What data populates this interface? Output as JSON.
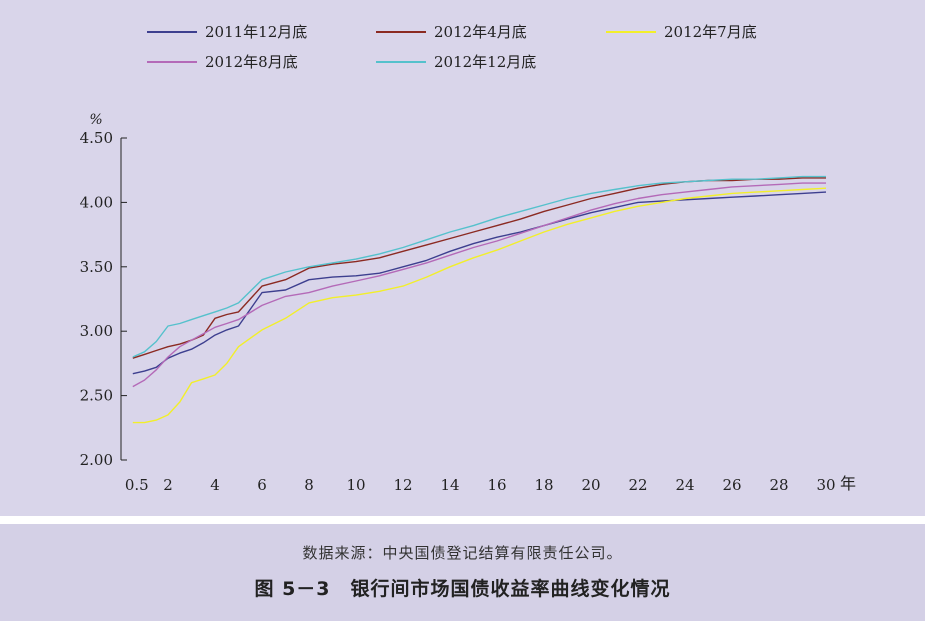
{
  "chart_data": {
    "type": "line",
    "title": "",
    "xlabel": "年",
    "ylabel": "%",
    "xlim": [
      0,
      30
    ],
    "ylim": [
      2.0,
      4.5
    ],
    "x_ticks": [
      {
        "value": 0.5,
        "label": "0.5"
      },
      {
        "value": 2,
        "label": "2"
      },
      {
        "value": 4,
        "label": "4"
      },
      {
        "value": 6,
        "label": "6"
      },
      {
        "value": 8,
        "label": "8"
      },
      {
        "value": 10,
        "label": "10"
      },
      {
        "value": 12,
        "label": "12"
      },
      {
        "value": 14,
        "label": "14"
      },
      {
        "value": 16,
        "label": "16"
      },
      {
        "value": 18,
        "label": "18"
      },
      {
        "value": 20,
        "label": "20"
      },
      {
        "value": 22,
        "label": "22"
      },
      {
        "value": 24,
        "label": "24"
      },
      {
        "value": 26,
        "label": "26"
      },
      {
        "value": 28,
        "label": "28"
      },
      {
        "value": 30,
        "label": "30"
      }
    ],
    "y_ticks": [
      {
        "value": 2.0,
        "label": "2.00"
      },
      {
        "value": 2.5,
        "label": "2.50"
      },
      {
        "value": 3.0,
        "label": "3.00"
      },
      {
        "value": 3.5,
        "label": "3.50"
      },
      {
        "value": 4.0,
        "label": "4.00"
      },
      {
        "value": 4.5,
        "label": "4.50"
      }
    ],
    "grid": false,
    "legend": "top",
    "x": [
      0.5,
      1,
      1.5,
      2,
      2.5,
      3,
      3.5,
      4,
      4.5,
      5,
      6,
      7,
      8,
      9,
      10,
      11,
      12,
      13,
      14,
      15,
      16,
      17,
      18,
      19,
      20,
      21,
      22,
      23,
      24,
      25,
      26,
      27,
      28,
      29,
      30
    ],
    "series": [
      {
        "name": "2011年12月底",
        "color": "#3d3f8f",
        "values": [
          2.67,
          2.69,
          2.72,
          2.79,
          2.83,
          2.86,
          2.91,
          2.97,
          3.01,
          3.04,
          3.3,
          3.32,
          3.4,
          3.42,
          3.43,
          3.45,
          3.5,
          3.55,
          3.62,
          3.68,
          3.73,
          3.77,
          3.82,
          3.87,
          3.92,
          3.96,
          4.0,
          4.01,
          4.02,
          4.03,
          4.04,
          4.05,
          4.06,
          4.07,
          4.08
        ]
      },
      {
        "name": "2012年4月底",
        "color": "#8b2a22",
        "values": [
          2.79,
          2.82,
          2.85,
          2.88,
          2.9,
          2.93,
          2.97,
          3.1,
          3.13,
          3.15,
          3.35,
          3.4,
          3.49,
          3.52,
          3.54,
          3.57,
          3.62,
          3.67,
          3.72,
          3.77,
          3.82,
          3.87,
          3.93,
          3.98,
          4.03,
          4.07,
          4.11,
          4.14,
          4.16,
          4.17,
          4.17,
          4.18,
          4.18,
          4.19,
          4.19
        ]
      },
      {
        "name": "2012年7月底",
        "color": "#f2ef2a",
        "values": [
          2.29,
          2.29,
          2.31,
          2.35,
          2.45,
          2.6,
          2.63,
          2.66,
          2.75,
          2.88,
          3.01,
          3.1,
          3.22,
          3.26,
          3.28,
          3.31,
          3.35,
          3.42,
          3.5,
          3.57,
          3.63,
          3.7,
          3.77,
          3.83,
          3.88,
          3.93,
          3.97,
          4.0,
          4.03,
          4.05,
          4.07,
          4.08,
          4.09,
          4.1,
          4.11
        ]
      },
      {
        "name": "2012年8月底",
        "color": "#b46ab8",
        "values": [
          2.57,
          2.62,
          2.7,
          2.8,
          2.88,
          2.93,
          2.98,
          3.03,
          3.06,
          3.09,
          3.2,
          3.27,
          3.3,
          3.35,
          3.39,
          3.43,
          3.48,
          3.53,
          3.59,
          3.65,
          3.7,
          3.76,
          3.82,
          3.88,
          3.94,
          3.99,
          4.03,
          4.06,
          4.08,
          4.1,
          4.12,
          4.13,
          4.14,
          4.15,
          4.15
        ]
      },
      {
        "name": "2012年12月底",
        "color": "#55c1cc",
        "values": [
          2.8,
          2.84,
          2.92,
          3.04,
          3.06,
          3.09,
          3.12,
          3.15,
          3.18,
          3.22,
          3.4,
          3.46,
          3.5,
          3.53,
          3.56,
          3.6,
          3.65,
          3.71,
          3.77,
          3.82,
          3.88,
          3.93,
          3.98,
          4.03,
          4.07,
          4.1,
          4.13,
          4.15,
          4.16,
          4.17,
          4.18,
          4.18,
          4.19,
          4.2,
          4.2
        ]
      }
    ]
  },
  "caption": {
    "source": "数据来源：中央国债登记结算有限责任公司。",
    "figure_title": "图 5－3　银行间市场国债收益率曲线变化情况"
  }
}
